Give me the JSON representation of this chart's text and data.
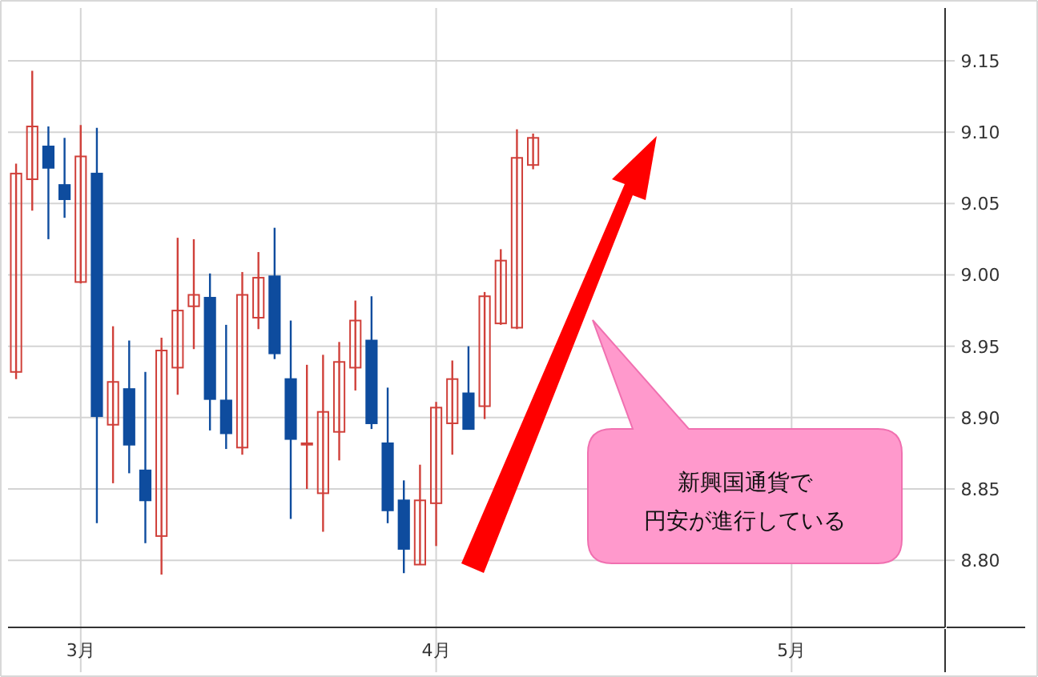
{
  "chart_data": {
    "type": "candlestick",
    "categories": [
      null,
      null,
      null,
      null,
      "3月",
      null,
      null,
      null,
      null,
      null,
      null,
      null,
      null,
      null,
      null,
      null,
      null,
      null,
      null,
      null,
      null,
      null,
      null,
      null,
      null,
      null,
      "4月",
      null,
      null,
      null,
      null,
      null,
      null,
      null,
      null,
      null,
      null,
      null,
      null,
      null,
      null,
      null,
      null,
      null,
      null,
      null,
      null,
      null,
      "5月",
      null,
      null,
      null,
      null,
      null,
      null,
      null,
      null,
      null
    ],
    "ohlc": [
      [
        8.932,
        9.078,
        8.927,
        9.071
      ],
      [
        9.067,
        9.143,
        9.045,
        9.104
      ],
      [
        9.09,
        9.104,
        9.025,
        9.075
      ],
      [
        9.063,
        9.096,
        9.04,
        9.053
      ],
      [
        8.995,
        9.105,
        8.994,
        9.083
      ],
      [
        9.071,
        9.103,
        8.826,
        8.901
      ],
      [
        8.895,
        8.964,
        8.854,
        8.925
      ],
      [
        8.92,
        8.954,
        8.861,
        8.881
      ],
      [
        8.863,
        8.932,
        8.812,
        8.842
      ],
      [
        8.817,
        8.956,
        8.79,
        8.947
      ],
      [
        8.935,
        9.026,
        8.916,
        8.975
      ],
      [
        8.978,
        9.025,
        8.948,
        8.986
      ],
      [
        8.984,
        9.001,
        8.891,
        8.913
      ],
      [
        8.912,
        8.965,
        8.878,
        8.889
      ],
      [
        8.879,
        9.002,
        8.874,
        8.986
      ],
      [
        8.97,
        9.016,
        8.962,
        8.998
      ],
      [
        8.999,
        9.033,
        8.941,
        8.945
      ],
      [
        8.927,
        8.968,
        8.829,
        8.885
      ],
      [
        8.881,
        8.937,
        8.85,
        8.882
      ],
      [
        8.847,
        8.944,
        8.82,
        8.904
      ],
      [
        8.89,
        8.953,
        8.87,
        8.939
      ],
      [
        8.935,
        8.982,
        8.919,
        8.968
      ],
      [
        8.954,
        8.985,
        8.892,
        8.896
      ],
      [
        8.882,
        8.921,
        8.826,
        8.835
      ],
      [
        8.842,
        8.856,
        8.791,
        8.808
      ],
      [
        8.797,
        8.867,
        8.797,
        8.842
      ],
      [
        8.84,
        8.911,
        8.81,
        8.907
      ],
      [
        8.896,
        8.94,
        8.874,
        8.927
      ],
      [
        8.917,
        8.95,
        8.892,
        8.892
      ],
      [
        8.908,
        8.988,
        8.899,
        8.985
      ],
      [
        8.966,
        9.018,
        8.965,
        9.01
      ],
      [
        8.963,
        9.102,
        8.962,
        9.082
      ],
      [
        9.077,
        9.099,
        9.074,
        9.096
      ],
      null,
      null,
      null,
      null,
      null,
      null,
      null,
      null,
      null,
      null,
      null,
      null,
      null,
      null,
      null,
      null,
      null,
      null,
      null,
      null,
      null,
      null,
      null,
      null,
      null
    ],
    "colors": [
      "#d0403a",
      "#d0403a",
      "#0e4c9e",
      "#0e4c9e",
      "#d0403a",
      "#0e4c9e",
      "#d0403a",
      "#0e4c9e",
      "#0e4c9e",
      "#d0403a",
      "#d0403a",
      "#d0403a",
      "#0e4c9e",
      "#0e4c9e",
      "#d0403a",
      "#d0403a",
      "#0e4c9e",
      "#0e4c9e",
      "#d0403a",
      "#d0403a",
      "#d0403a",
      "#d0403a",
      "#0e4c9e",
      "#0e4c9e",
      "#0e4c9e",
      "#d0403a",
      "#d0403a",
      "#d0403a",
      "#0e4c9e",
      "#d0403a",
      "#d0403a",
      "#d0403a",
      "#d0403a",
      null,
      null,
      null,
      null,
      null,
      null,
      null,
      null,
      null,
      null,
      null,
      null,
      null,
      null,
      null,
      null,
      null,
      null,
      null,
      null,
      null,
      null,
      null,
      null,
      null
    ],
    "ylim": [
      8.753,
      9.187
    ],
    "yticks": [
      {
        "value": 8.8,
        "label": "8.80"
      },
      {
        "value": 8.85,
        "label": "8.85"
      },
      {
        "value": 8.9,
        "label": "8.90"
      },
      {
        "value": 8.95,
        "label": "8.95"
      },
      {
        "value": 9.0,
        "label": "9.00"
      },
      {
        "value": 9.05,
        "label": "9.05"
      },
      {
        "value": 9.1,
        "label": "9.10"
      },
      {
        "value": 9.15,
        "label": "9.15"
      }
    ],
    "grid": true,
    "annotations": [
      "新興国通貨で",
      "円安が進行している"
    ]
  }
}
